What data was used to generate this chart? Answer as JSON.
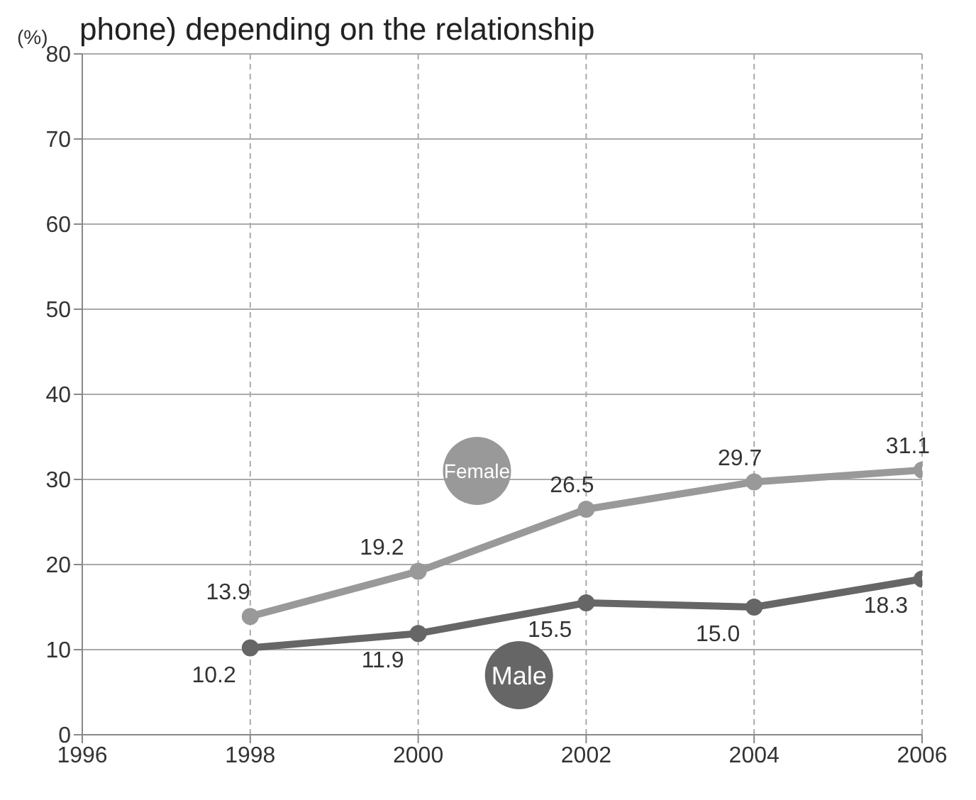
{
  "chart_data": {
    "type": "line",
    "title": "phone) depending on the relationship",
    "ylabel": "(%)",
    "x": [
      1998,
      2000,
      2002,
      2004,
      2006
    ],
    "series": [
      {
        "name": "Female",
        "color": "#999999",
        "values": [
          13.9,
          19.2,
          26.5,
          29.7,
          31.1
        ]
      },
      {
        "name": "Male",
        "color": "#666666",
        "values": [
          10.2,
          11.9,
          15.5,
          15.0,
          18.3
        ],
        "value_labels": [
          "10.2",
          "11.9",
          "15.5",
          "15.0",
          "18.3"
        ]
      }
    ],
    "xlim": [
      1996,
      2006
    ],
    "xticks": [
      1996,
      1998,
      2000,
      2002,
      2004,
      2006
    ],
    "ylim": [
      0,
      80
    ],
    "yticks": [
      0,
      10,
      20,
      30,
      40,
      50,
      60,
      70,
      80
    ],
    "grid": true,
    "data_labels": true,
    "marker": "circle",
    "line_style": "solid",
    "legend": false
  }
}
